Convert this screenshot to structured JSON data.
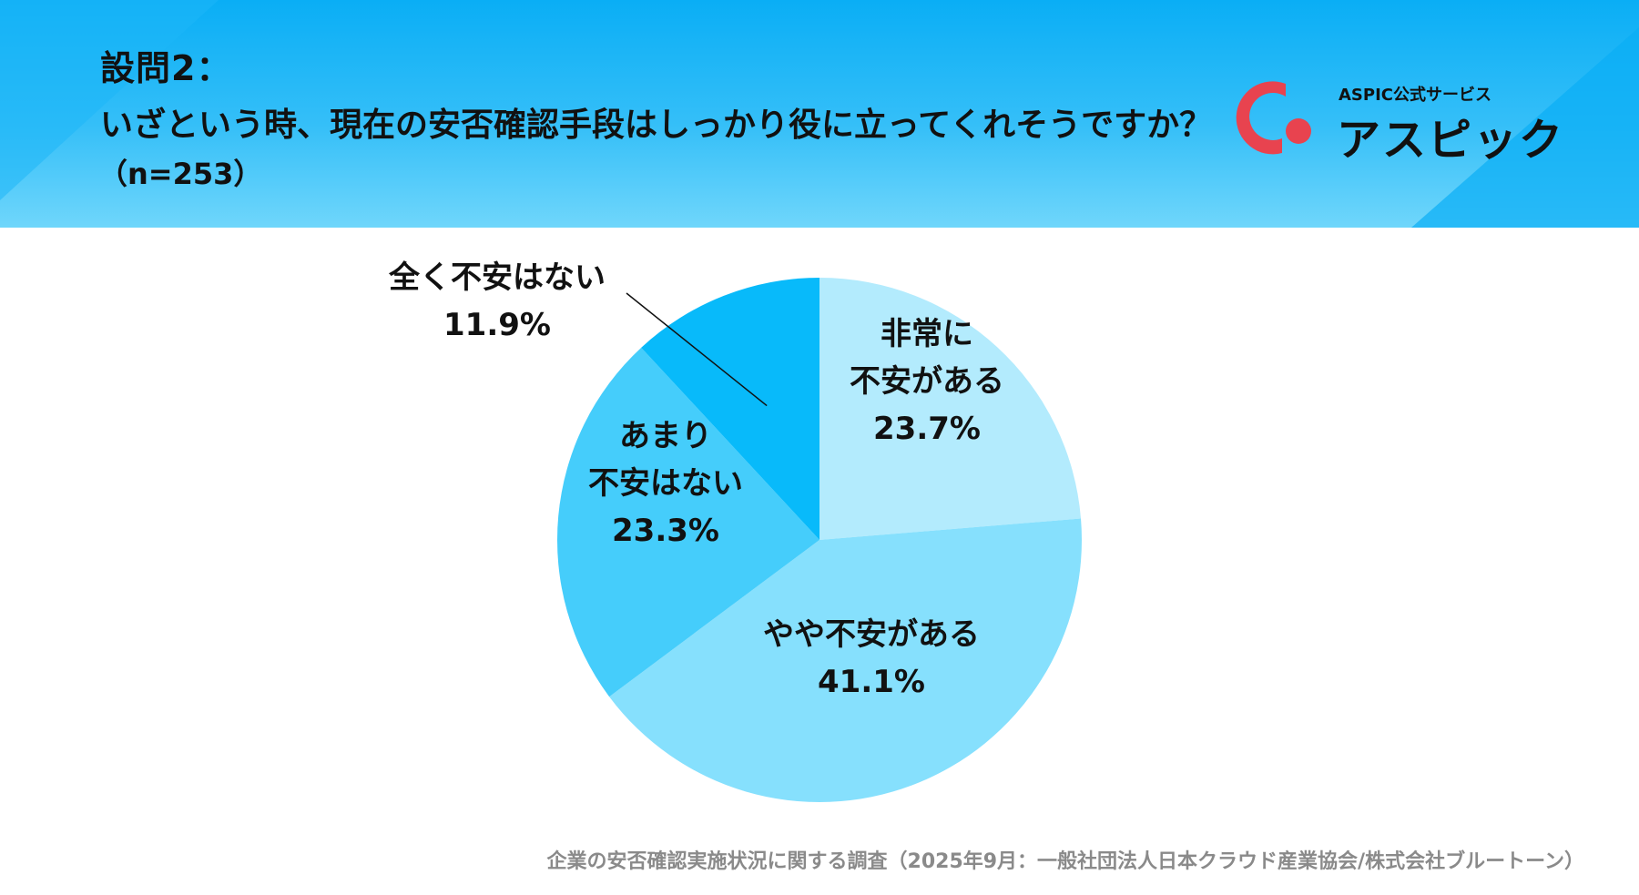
{
  "header": {
    "question_label": "設問2：",
    "question_text": "いざという時、現在の安否確認手段はしっかり役に立ってくれそうですか？",
    "sample_size": "（n=253）"
  },
  "logo": {
    "sub": "ASPIC公式サービス",
    "main": "アスピック"
  },
  "colors": {
    "header_dark": "#0aaef5",
    "header_light": "#6fd6fb",
    "logo_red": "#e8434f"
  },
  "chart_data": {
    "type": "pie",
    "title": "",
    "start_angle_deg": 0,
    "direction": "clockwise",
    "slices": [
      {
        "label_lines": [
          "非常に",
          "不安がある"
        ],
        "value": 23.7,
        "value_text": "23.7%",
        "color": "#b3ebfd"
      },
      {
        "label_lines": [
          "やや不安がある"
        ],
        "value": 41.1,
        "value_text": "41.1%",
        "color": "#86e0fd"
      },
      {
        "label_lines": [
          "あまり",
          "不安はない"
        ],
        "value": 23.3,
        "value_text": "23.3%",
        "color": "#45cdfb"
      },
      {
        "label_lines": [
          "全く不安はない"
        ],
        "value": 11.9,
        "value_text": "11.9%",
        "color": "#08bafa"
      }
    ]
  },
  "source": "企業の安否確認実施状況に関する調査（2025年9月：一般社団法人日本クラウド産業協会/株式会社ブルートーン）"
}
